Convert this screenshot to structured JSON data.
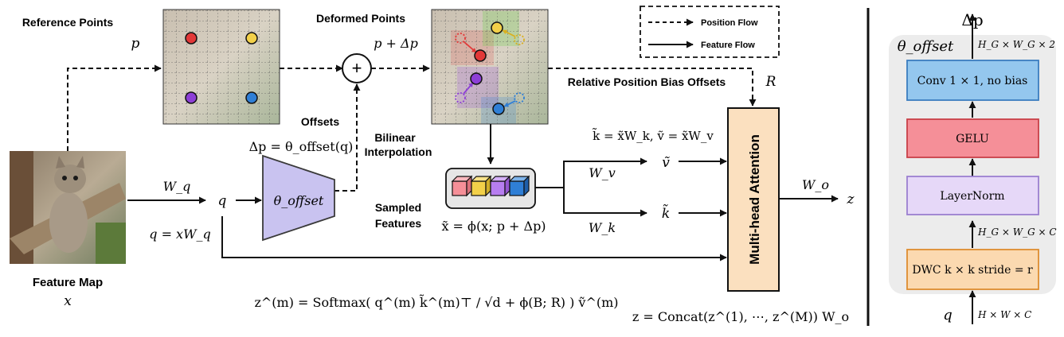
{
  "labels": {
    "reference_points": "Reference Points",
    "reference_symbol": "p",
    "deformed_points": "Deformed Points",
    "deformed_symbol": "p + Δp",
    "offsets": "Offsets",
    "offset_eq": "Δp = θ_offset(q)",
    "theta_offset": "θ_offset",
    "bilinear_1": "Bilinear",
    "bilinear_2": "Interpolation",
    "sampled_1": "Sampled",
    "sampled_2": "Features",
    "sampled_eq": "x̃ = ϕ(x; p + Δp)",
    "rel_pos": "Relative Position Bias Offsets",
    "R": "R",
    "kv_eq": "k̃ = x̃W_k, ṽ = x̃W_v",
    "v_tilde": "ṽ",
    "k_tilde": "k̃",
    "Wv": "W_v",
    "Wk": "W_k",
    "Wq": "W_q",
    "q": "q",
    "q_eq": "q = xW_q",
    "mha": "Multi-head Attention",
    "Wo": "W_o",
    "z": "z",
    "feature_map": "Feature Map",
    "x": "x",
    "softmax_eq": "z^(m) = Softmax( q^(m) k̃^(m)⊤ / √d + ϕ(B; R) ) ṽ^(m)",
    "concat_eq": "z = Concat(z^(1), ⋯, z^(M)) W_o"
  },
  "legend": {
    "position_flow": "Position Flow",
    "feature_flow": "Feature Flow"
  },
  "offset_net": {
    "delta_p": "Δp",
    "theta": "θ_offset",
    "shape_out": "H_G × W_G × 2",
    "conv": "Conv 1 × 1, no bias",
    "gelu": "GELU",
    "layernorm": "LayerNorm",
    "shape_mid": "H_G × W_G × C",
    "dwc": "DWC k × k stride = r",
    "q": "q",
    "shape_in": "H × W × C"
  },
  "colors": {
    "theta_fill": "#c9c3f0",
    "theta_stroke": "#3a3a3a",
    "mha_fill": "#fbe0bf",
    "conv_fill": "#94c7ee",
    "conv_stroke": "#3b7dc0",
    "gelu_fill": "#f58f98",
    "gelu_stroke": "#c94048",
    "ln_fill": "#e6d8f8",
    "ln_stroke": "#9b7fd0",
    "dwc_fill": "#fbd9b0",
    "dwc_stroke": "#de8d2f",
    "panel_bg": "#ececec",
    "dot_red": "#e23838",
    "dot_yellow": "#f2d049",
    "dot_purple": "#8d3fd6",
    "dot_blue": "#2f7fd6"
  }
}
